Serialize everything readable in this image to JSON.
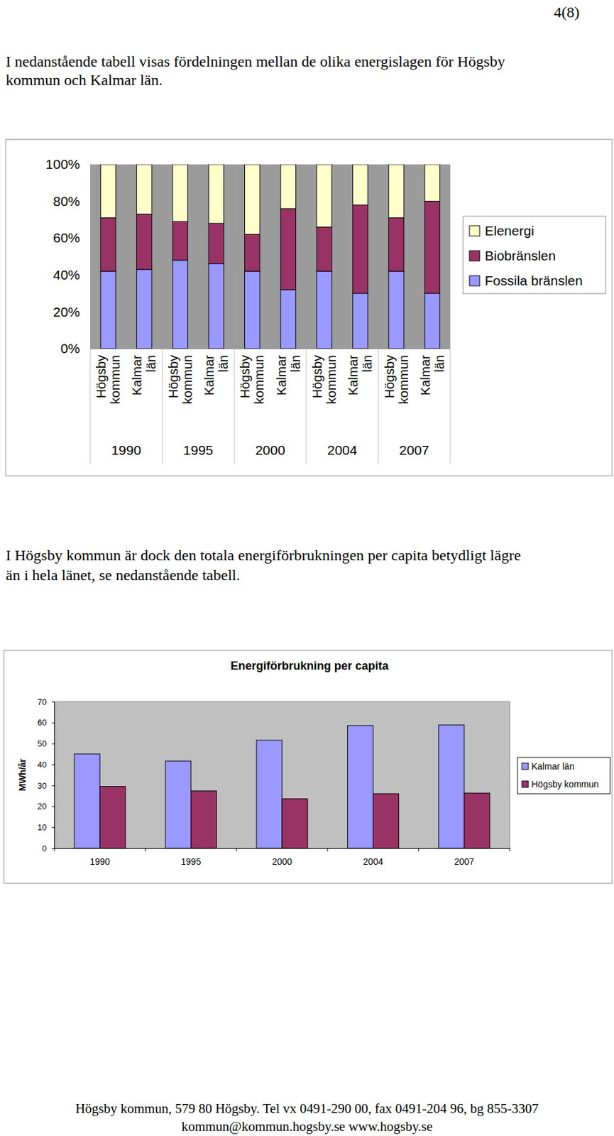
{
  "page_number": "4(8)",
  "paragraphs": [
    [
      "I nedanstående tabell visas fördelningen mellan de olika energislagen för Högsby",
      "kommun och Kalmar län."
    ],
    [
      "I Högsby kommun är dock den totala energiförbrukningen per capita betydligt lägre",
      "än i hela länet, se nedanstående tabell."
    ]
  ],
  "chart_data": [
    {
      "type": "bar",
      "stacked": true,
      "grid": false,
      "legend": "right",
      "categories": [
        "Högsby kommun",
        "Kalmar län",
        "Högsby kommun",
        "Kalmar län",
        "Högsby kommun",
        "Kalmar län",
        "Högsby kommun",
        "Kalmar län",
        "Högsby kommun",
        "Kalmar län"
      ],
      "category_groups": [
        "1990",
        "1995",
        "2000",
        "2004",
        "2007"
      ],
      "ylim": [
        0,
        100
      ],
      "yticks": [
        {
          "value": 0,
          "label": "0%"
        },
        {
          "value": 20,
          "label": "20%"
        },
        {
          "value": 40,
          "label": "40%"
        },
        {
          "value": 60,
          "label": "60%"
        },
        {
          "value": 80,
          "label": "80%"
        },
        {
          "value": 100,
          "label": "100%"
        }
      ],
      "series": [
        {
          "name": "Fossila bränslen",
          "color": "#9999ff",
          "values": [
            42,
            43,
            48,
            46,
            42,
            32,
            42,
            30,
            42,
            30
          ]
        },
        {
          "name": "Biobränslen",
          "color": "#993366",
          "values": [
            29,
            30,
            21,
            22,
            20,
            44,
            24,
            48,
            29,
            50
          ]
        },
        {
          "name": "Elenergi",
          "color": "#ffffcc",
          "values": [
            29,
            27,
            31,
            32,
            38,
            24,
            34,
            22,
            29,
            20
          ]
        }
      ]
    },
    {
      "type": "bar",
      "title": "Energiförbrukning per capita",
      "y_label": "MWh/år",
      "grid": false,
      "legend": "right",
      "categories": [
        "1990",
        "1995",
        "2000",
        "2004",
        "2007"
      ],
      "ylim": [
        0,
        70
      ],
      "yticks": [
        0,
        10,
        20,
        30,
        40,
        50,
        60,
        70
      ],
      "series": [
        {
          "name": "Kalmar län",
          "color": "#9999ff",
          "values": [
            45,
            41.6,
            51.6,
            58.6,
            58.9
          ]
        },
        {
          "name": "Högsby kommun",
          "color": "#993366",
          "values": [
            29.5,
            27.4,
            23.6,
            26,
            26.3
          ]
        }
      ]
    }
  ],
  "footer": [
    "Högsby kommun, 579 80  Högsby. Tel vx 0491-290 00, fax 0491-204 96, bg 855-3307",
    "kommun@kommun.hogsby.se   www.hogsby.se"
  ]
}
